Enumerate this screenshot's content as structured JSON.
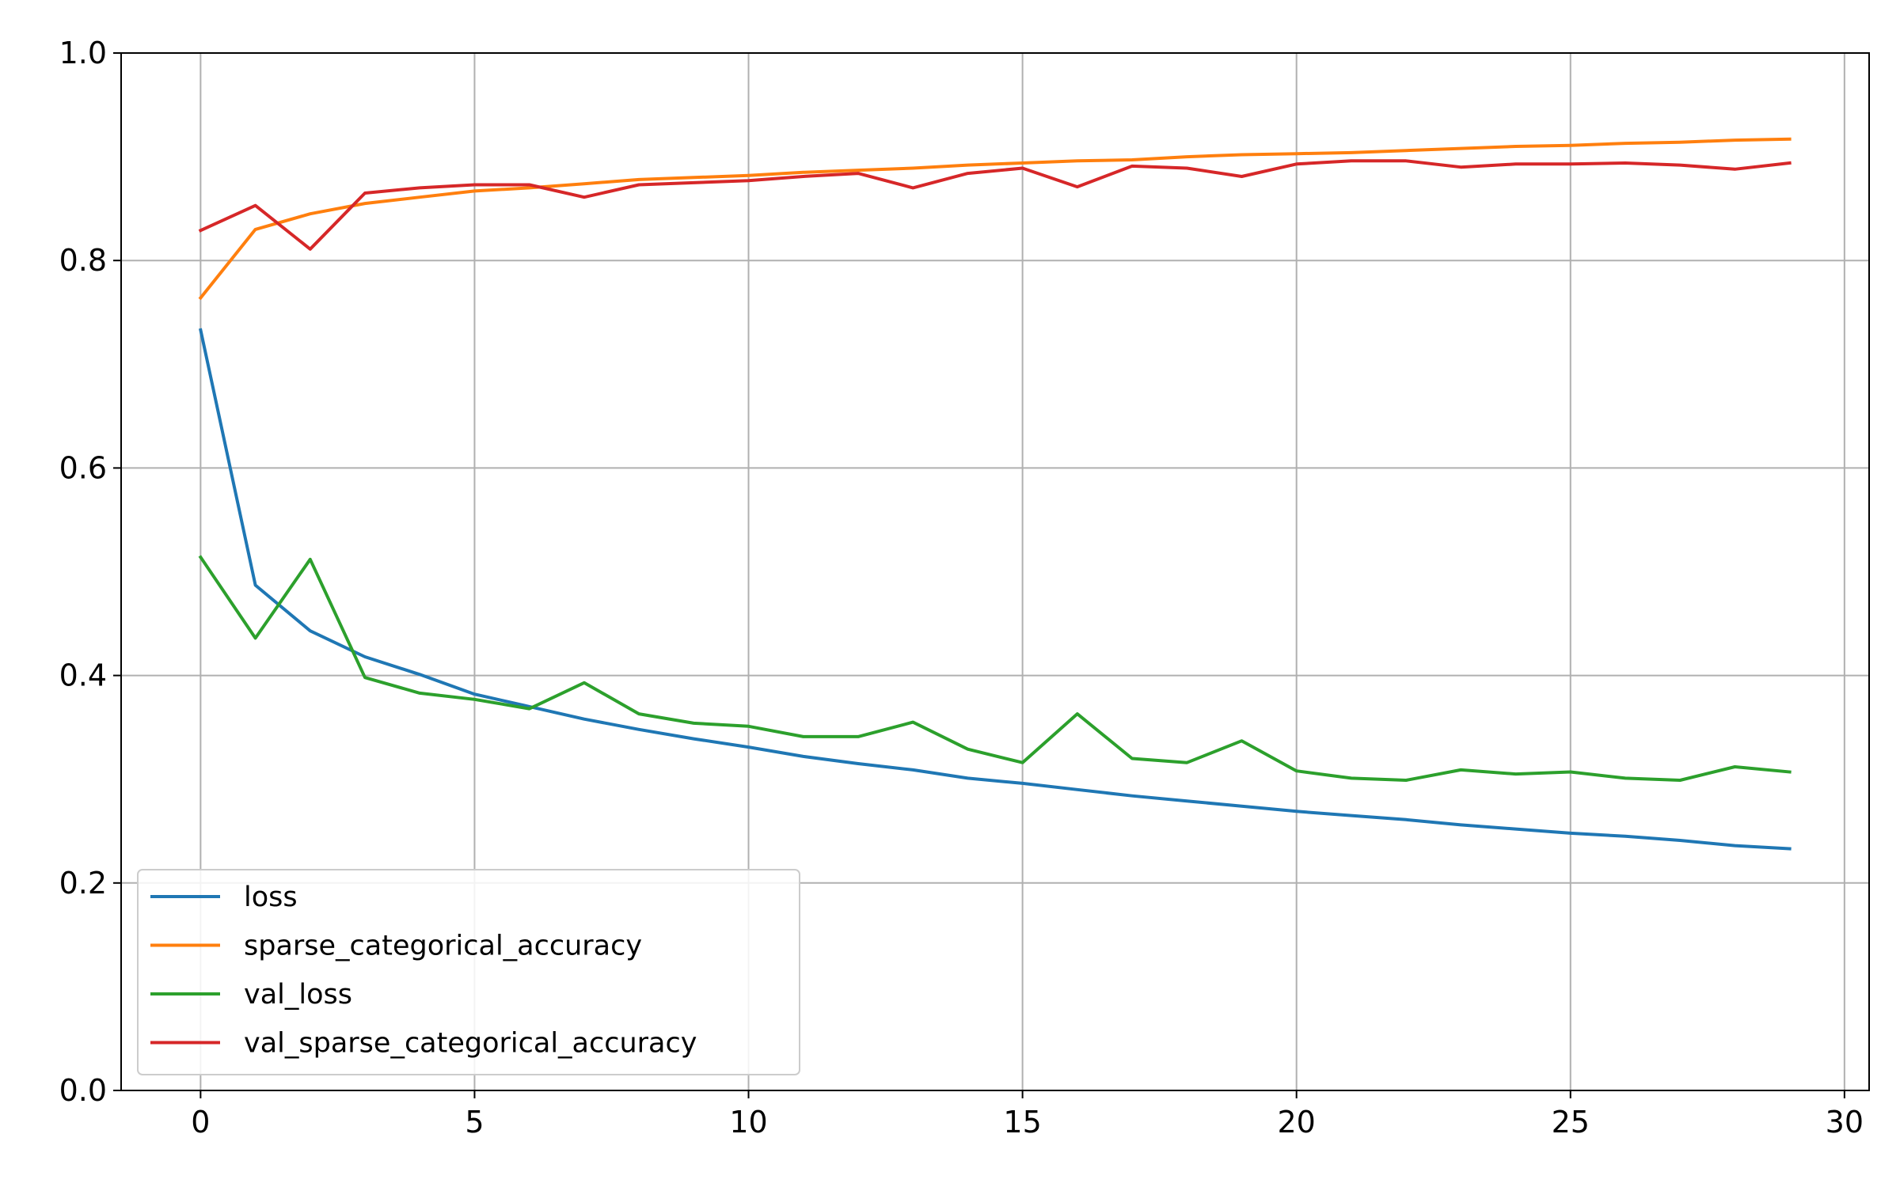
{
  "chart_data": {
    "type": "line",
    "title": "",
    "xlabel": "",
    "ylabel": "",
    "xlim": [
      -1.45,
      30.45
    ],
    "ylim": [
      0.0,
      1.0
    ],
    "x_ticks": [
      0,
      5,
      10,
      15,
      20,
      25,
      30
    ],
    "y_ticks": [
      0.0,
      0.2,
      0.4,
      0.6,
      0.8,
      1.0
    ],
    "x_tick_labels": [
      "0",
      "5",
      "10",
      "15",
      "20",
      "25",
      "30"
    ],
    "y_tick_labels": [
      "0.0",
      "0.2",
      "0.4",
      "0.6",
      "0.8",
      "1.0"
    ],
    "grid": true,
    "legend_position": "lower-left",
    "x": [
      0,
      1,
      2,
      3,
      4,
      5,
      6,
      7,
      8,
      9,
      10,
      11,
      12,
      13,
      14,
      15,
      16,
      17,
      18,
      19,
      20,
      21,
      22,
      23,
      24,
      25,
      26,
      27,
      28,
      29
    ],
    "series": [
      {
        "name": "loss",
        "color": "#1f77b4",
        "values": [
          0.733,
          0.487,
          0.443,
          0.418,
          0.401,
          0.382,
          0.37,
          0.358,
          0.348,
          0.339,
          0.331,
          0.322,
          0.315,
          0.309,
          0.301,
          0.296,
          0.29,
          0.284,
          0.279,
          0.274,
          0.269,
          0.265,
          0.261,
          0.256,
          0.252,
          0.248,
          0.245,
          0.241,
          0.236,
          0.233
        ]
      },
      {
        "name": "sparse_categorical_accuracy",
        "color": "#ff7f0e",
        "values": [
          0.764,
          0.83,
          0.845,
          0.855,
          0.861,
          0.867,
          0.87,
          0.874,
          0.878,
          0.88,
          0.882,
          0.885,
          0.887,
          0.889,
          0.892,
          0.894,
          0.896,
          0.897,
          0.9,
          0.902,
          0.903,
          0.904,
          0.906,
          0.908,
          0.91,
          0.911,
          0.913,
          0.914,
          0.916,
          0.917
        ]
      },
      {
        "name": "val_loss",
        "color": "#2ca02c",
        "values": [
          0.514,
          0.436,
          0.512,
          0.398,
          0.383,
          0.377,
          0.368,
          0.393,
          0.363,
          0.354,
          0.351,
          0.341,
          0.341,
          0.355,
          0.329,
          0.316,
          0.363,
          0.32,
          0.316,
          0.337,
          0.308,
          0.301,
          0.299,
          0.309,
          0.305,
          0.307,
          0.301,
          0.299,
          0.312,
          0.307
        ]
      },
      {
        "name": "val_sparse_categorical_accuracy",
        "color": "#d62728",
        "values": [
          0.829,
          0.853,
          0.811,
          0.865,
          0.87,
          0.873,
          0.873,
          0.861,
          0.873,
          0.875,
          0.877,
          0.881,
          0.884,
          0.87,
          0.884,
          0.889,
          0.871,
          0.891,
          0.889,
          0.881,
          0.893,
          0.896,
          0.896,
          0.89,
          0.893,
          0.893,
          0.894,
          0.892,
          0.888,
          0.894
        ]
      }
    ]
  }
}
